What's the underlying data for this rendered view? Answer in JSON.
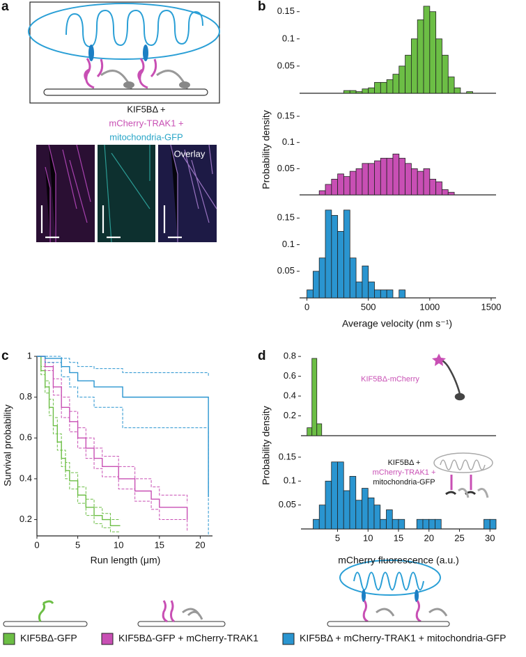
{
  "figure": {
    "panel_labels": [
      "a",
      "b",
      "c",
      "d"
    ],
    "panel_a": {
      "construct_lines": [
        "KIF5BΔ +",
        "mCherry-TRAK1 +",
        "mitochondria-GFP"
      ],
      "overlay_label": "Overlay"
    }
  },
  "chart_data": [
    {
      "type": "histogram",
      "color": "#6cbe45",
      "bins": [
        300,
        350,
        400,
        450,
        500,
        550,
        600,
        650,
        700,
        750,
        800,
        850,
        900,
        950,
        1000,
        1050,
        1100,
        1150,
        1200,
        1250,
        1300,
        1350
      ],
      "values": [
        0.005,
        0.005,
        0.003,
        0.008,
        0.01,
        0.02,
        0.02,
        0.025,
        0.035,
        0.05,
        0.07,
        0.1,
        0.135,
        0.16,
        0.15,
        0.1,
        0.07,
        0.03,
        0.01,
        0,
        0.003
      ],
      "xlim": [
        -60,
        1540
      ],
      "ylim": [
        0,
        0.165
      ],
      "yticks": [
        0.05,
        0.1,
        0.15
      ]
    },
    {
      "type": "histogram",
      "color": "#c84fb4",
      "ylabel": "Probability density",
      "bins": [
        100,
        150,
        200,
        250,
        300,
        350,
        400,
        450,
        500,
        550,
        600,
        650,
        700,
        750,
        800,
        850,
        900,
        950,
        1000,
        1050,
        1100,
        1150,
        1200
      ],
      "values": [
        0.008,
        0.02,
        0.03,
        0.04,
        0.035,
        0.045,
        0.05,
        0.06,
        0.06,
        0.065,
        0.07,
        0.07,
        0.078,
        0.07,
        0.06,
        0.05,
        0.045,
        0.05,
        0.03,
        0.025,
        0.01,
        0.005
      ],
      "xlim": [
        -60,
        1540
      ],
      "ylim": [
        0,
        0.17
      ],
      "yticks": [
        0.05,
        0.1,
        0.15
      ]
    },
    {
      "type": "histogram",
      "color": "#2a95d0",
      "xlabel": "Average velocity (nm s⁻¹)",
      "bins": [
        0,
        50,
        100,
        150,
        200,
        250,
        300,
        350,
        400,
        450,
        500,
        550,
        600,
        650,
        700,
        750,
        800
      ],
      "values": [
        0.015,
        0.05,
        0.075,
        0.165,
        0.155,
        0.125,
        0.165,
        0.075,
        0.03,
        0.06,
        0.03,
        0.015,
        0.015,
        0.015,
        0,
        0.015
      ],
      "xlim": [
        -60,
        1540
      ],
      "xticks": [
        0,
        500,
        1000,
        1500
      ],
      "ylim": [
        0,
        0.17
      ],
      "yticks": [
        0.05,
        0.1,
        0.15
      ]
    },
    {
      "type": "line",
      "drawstyle": "steps-post",
      "xlabel": "Run length (μm)",
      "ylabel": "Survival probability",
      "xlim": [
        0,
        21.5
      ],
      "xticks": [
        0,
        5,
        10,
        15,
        20
      ],
      "ylim": [
        0.12,
        1
      ],
      "yticks": [
        0.2,
        0.4,
        0.6,
        0.8,
        1
      ],
      "series": [
        {
          "name": "KIF5BΔ-GFP",
          "color": "#6cbe45",
          "x": [
            0,
            0.5,
            1,
            1.5,
            2,
            2.5,
            3,
            3.5,
            4,
            5,
            6,
            7,
            8,
            9,
            10.2
          ],
          "values": [
            1,
            0.93,
            0.85,
            0.75,
            0.66,
            0.58,
            0.5,
            0.44,
            0.39,
            0.32,
            0.26,
            0.22,
            0.2,
            0.17,
            0.17
          ],
          "ci_lower": [
            1,
            0.91,
            0.82,
            0.71,
            0.62,
            0.54,
            0.46,
            0.4,
            0.35,
            0.28,
            0.22,
            0.18,
            0.16,
            0.14,
            0.14
          ],
          "ci_upper": [
            1,
            0.95,
            0.88,
            0.79,
            0.7,
            0.62,
            0.54,
            0.48,
            0.43,
            0.36,
            0.3,
            0.26,
            0.23,
            0.2,
            0.2
          ]
        },
        {
          "name": "KIF5BΔ-GFP + mCherry-TRAK1",
          "color": "#c84fb4",
          "x": [
            0,
            1,
            2,
            3,
            4,
            5,
            6,
            7,
            8,
            10,
            12,
            14,
            15,
            18.4
          ],
          "values": [
            1,
            0.95,
            0.85,
            0.75,
            0.68,
            0.6,
            0.55,
            0.5,
            0.46,
            0.4,
            0.34,
            0.3,
            0.26,
            0.2
          ],
          "ci_lower": [
            1,
            0.93,
            0.81,
            0.7,
            0.63,
            0.55,
            0.5,
            0.45,
            0.41,
            0.35,
            0.29,
            0.25,
            0.2,
            0.14
          ],
          "ci_upper": [
            1,
            0.97,
            0.89,
            0.8,
            0.73,
            0.65,
            0.6,
            0.55,
            0.51,
            0.46,
            0.4,
            0.36,
            0.32,
            0.28
          ]
        },
        {
          "name": "KIF5BΔ + mCherry-TRAK1 + mitochondria-GFP",
          "color": "#2a95d0",
          "x": [
            0,
            1,
            3,
            4,
            5,
            7,
            10.5,
            21,
            21
          ],
          "values": [
            1,
            0.99,
            0.95,
            0.92,
            0.88,
            0.85,
            0.8,
            0.74,
            0.31
          ],
          "ci_lower": [
            1,
            0.97,
            0.9,
            0.85,
            0.8,
            0.75,
            0.65,
            0.58,
            0.12
          ],
          "ci_upper": [
            1,
            1,
            0.99,
            0.97,
            0.95,
            0.94,
            0.92,
            0.9,
            0.9
          ]
        }
      ]
    },
    {
      "type": "histogram",
      "color": "#6cbe45",
      "annotation": "KIF5BΔ-mCherry",
      "ylabel": "Probability density",
      "bins": [
        0,
        0.8,
        1.6,
        2.4
      ],
      "values": [
        0.08,
        0.78,
        0.12
      ],
      "xlim": [
        -1,
        31
      ],
      "ylim": [
        0,
        0.85
      ],
      "yticks": [
        0.2,
        0.4,
        0.6,
        0.8
      ]
    },
    {
      "type": "histogram",
      "color": "#2a95d0",
      "annotation_lines": [
        "KIF5BΔ +",
        "mCherry-TRAK1 +",
        "mitochondria-GFP"
      ],
      "xlabel": "mCherry fluorescence (a.u.)",
      "bins": [
        1,
        2,
        3,
        4,
        5,
        6,
        7,
        8,
        9,
        10,
        11,
        12,
        13,
        14,
        15,
        16,
        17,
        18,
        19,
        20,
        21,
        22,
        23,
        24,
        25,
        26,
        27,
        28,
        29,
        30,
        31
      ],
      "values": [
        0.02,
        0.05,
        0.1,
        0.14,
        0.14,
        0.08,
        0.11,
        0.06,
        0.085,
        0.065,
        0.05,
        0.02,
        0.04,
        0.02,
        0.02,
        0,
        0,
        0.02,
        0.02,
        0.02,
        0.02,
        0,
        0,
        0,
        0,
        0,
        0,
        0,
        0.02,
        0.02
      ],
      "xlim": [
        -1,
        31
      ],
      "xticks": [
        5,
        10,
        15,
        20,
        25,
        30
      ],
      "ylim": [
        0,
        0.16
      ],
      "yticks": [
        0.05,
        0.1,
        0.15
      ]
    }
  ]
}
